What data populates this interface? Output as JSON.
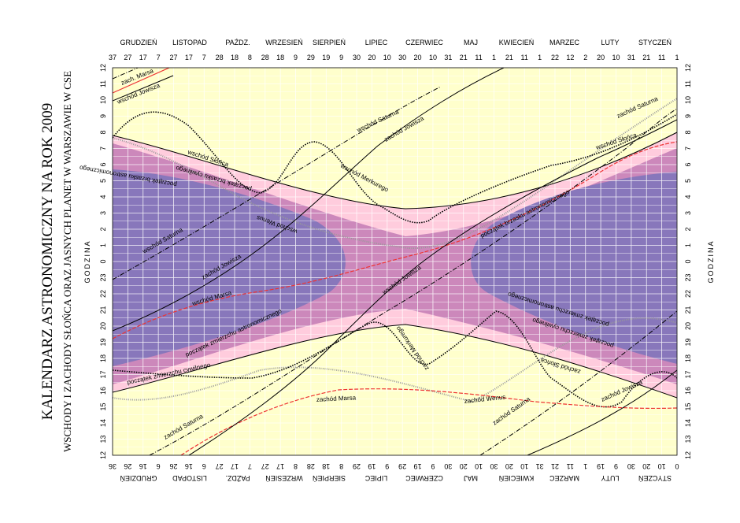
{
  "title": {
    "main": "KALENDARZ ASTRONOMICZNY NA ROK 2009",
    "sub": "WSCHODY I ZACHODY SŁOŃCA ORAZ JASNYCH PLANET W WARSZAWIE W CSE"
  },
  "axis": {
    "hour_label": "GODZINA",
    "hour_ticks": [
      "12",
      "11",
      "10",
      "9",
      "8",
      "7",
      "6",
      "5",
      "4",
      "3",
      "2",
      "1",
      "0",
      "23",
      "22",
      "21",
      "20",
      "19",
      "18",
      "17",
      "16",
      "15",
      "14",
      "13",
      "12"
    ],
    "months_top": [
      "GRUDZIEŃ",
      "LISTOPAD",
      "PAŹDZ.",
      "WRZESIEŃ",
      "SIERPIEŃ",
      "LIPIEC",
      "CZERWIEC",
      "MAJ",
      "KWIECIEŃ",
      "MARZEC",
      "LUTY",
      "STYCZEŃ"
    ],
    "day_ticks_top": [
      "37",
      "27",
      "17",
      "7",
      "27",
      "17",
      "7",
      "28",
      "18",
      "8",
      "28",
      "18",
      "9",
      "29",
      "19",
      "9",
      "30",
      "20",
      "10",
      "30",
      "20",
      "10",
      "31",
      "21",
      "11",
      "1",
      "21",
      "11",
      "1",
      "22",
      "12",
      "2",
      "20",
      "10",
      "31",
      "21",
      "11",
      "1"
    ],
    "day_ticks_bottom": [
      "36",
      "26",
      "16",
      "6",
      "26",
      "16",
      "6",
      "27",
      "17",
      "7",
      "27",
      "17",
      "8",
      "28",
      "18",
      "8",
      "29",
      "19",
      "9",
      "29",
      "19",
      "9",
      "30",
      "20",
      "10",
      "30",
      "20",
      "10",
      "31",
      "21",
      "11",
      "1",
      "19",
      "9",
      "30",
      "20",
      "10",
      "0"
    ]
  },
  "colors": {
    "background": "#ffffcc",
    "twilight_light": "#ffccdd",
    "twilight_mid": "#cc88bb",
    "night": "#8877bb",
    "grid": "#ffffff",
    "mars": "#ee3333",
    "saturn": "#000000",
    "venus": "#999999"
  },
  "labels": {
    "zach_marsa_top": "zach. Marsa",
    "wschod_jowisza_top": "wschód Jowisza",
    "wschod_saturna_top": "wschód Saturna",
    "zachod_jowisza_top": "zachód Jowisza",
    "zachod_saturna_right": "zachód Saturna",
    "wschod_slonca_left": "wschód Słońca",
    "wschod_slonca_right": "wschód Słońca",
    "wschod_merkurego": "wschód Merkurego",
    "poczatek_brzasku_cywilnego": "początek brzasku cywilnego",
    "poczatek_brzasku_astro_left": "początek brzasku astronomicznego",
    "poczatek_brzasku_astro_right": "początek brzasku astronomicznego",
    "wschod_wenus": "wschód Wenus",
    "wschod_saturna_left": "wschód Saturna",
    "zachod_jowisza_left": "zachód Jowisza",
    "wschod_marsa": "wschód Marsa",
    "wschod_jowisza_mid": "wschód Jowisza",
    "koniec_zmierzchu_astro_left": "początek zmierzchu astronomicznego",
    "koniec_zmierzchu_astro_right": "początek zmierzchu astronomicznego",
    "koniec_zmierzchu_cyw_left": "początek zmierzchu cywilnego",
    "koniec_zmierzchu_cyw_right": "początek zmierzchu cywilnego",
    "zachod_merkurego": "zachód Merkurego",
    "zachod_slonca": "zachód Słońca",
    "zachod_marsa": "zachód Marsa",
    "zachod_wenus": "zachód Wenus",
    "zachod_saturna_bottom": "zachód Saturna",
    "zachod_saturna_mid": "zachód Saturna",
    "wschod_jowisza_bottom": "wschód Jowisza",
    "zachod_jowisza_right": "zachód Jowisza"
  }
}
